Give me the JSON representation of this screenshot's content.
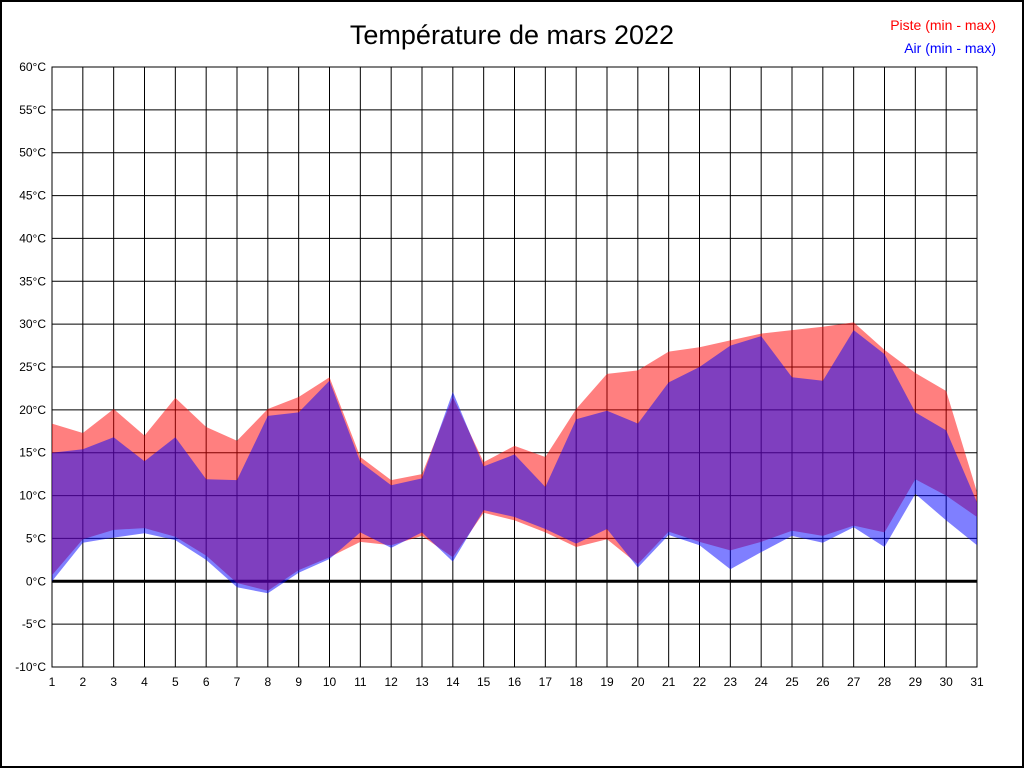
{
  "title": "Température de mars 2022",
  "legend": {
    "piste_label": "Piste (min - max)",
    "air_label": "Air (min - max)"
  },
  "colors": {
    "piste": "#ff0000",
    "air": "#0000ff",
    "piste_fill": "rgba(255,0,0,0.5)",
    "air_fill": "rgba(0,0,255,0.5)",
    "overlap_seen": "#7f40bf",
    "grid": "#000000",
    "background": "#ffffff"
  },
  "chart_data": {
    "type": "area",
    "subtype": "min-max-bands",
    "title": "Température de mars 2022",
    "xlabel": "",
    "ylabel": "",
    "x": [
      1,
      2,
      3,
      4,
      5,
      6,
      7,
      8,
      9,
      10,
      11,
      12,
      13,
      14,
      15,
      16,
      17,
      18,
      19,
      20,
      21,
      22,
      23,
      24,
      25,
      26,
      27,
      28,
      29,
      30,
      31
    ],
    "xlim": [
      1,
      31
    ],
    "ylim": [
      -10,
      60
    ],
    "ytick_step": 5,
    "ytick_suffix": "°C",
    "grid": true,
    "zero_line_bold": true,
    "legend_position": "top-right",
    "series": [
      {
        "id": "piste-band",
        "name": "Piste (min - max)",
        "color": "#ff0000",
        "fill": "rgba(255,0,0,0.5)",
        "min": [
          0.7,
          4.9,
          6.0,
          6.2,
          5.2,
          3.0,
          -0.2,
          -1.1,
          1.3,
          2.8,
          4.6,
          4.2,
          5.3,
          2.8,
          8.0,
          7.1,
          5.7,
          4.0,
          4.9,
          2.0,
          5.8,
          4.6,
          3.6,
          4.6,
          5.9,
          5.3,
          6.5,
          5.7,
          11.9,
          10.0,
          7.5
        ],
        "max": [
          18.4,
          17.3,
          20.1,
          17.0,
          21.4,
          18.0,
          16.4,
          20.1,
          21.5,
          23.8,
          14.5,
          11.8,
          12.5,
          21.5,
          13.9,
          15.8,
          14.5,
          20.1,
          24.2,
          24.6,
          26.8,
          27.3,
          28.1,
          28.9,
          29.3,
          29.7,
          30.2,
          27.0,
          24.3,
          22.2,
          10.4
        ]
      },
      {
        "id": "air-band",
        "name": "Air (min - max)",
        "color": "#0000ff",
        "fill": "rgba(0,0,255,0.5)",
        "min": [
          0.0,
          4.5,
          5.1,
          5.6,
          4.8,
          2.5,
          -0.7,
          -1.4,
          1.0,
          2.6,
          5.7,
          3.9,
          5.7,
          2.3,
          8.3,
          7.5,
          6.1,
          4.4,
          6.1,
          1.6,
          5.4,
          4.2,
          1.4,
          3.4,
          5.3,
          4.5,
          6.3,
          4.0,
          10.2,
          7.1,
          4.2
        ],
        "max": [
          15.0,
          15.4,
          16.8,
          14.0,
          16.8,
          11.9,
          11.8,
          19.3,
          19.7,
          23.4,
          13.9,
          11.2,
          12.0,
          22.1,
          13.4,
          14.8,
          11.0,
          18.9,
          19.9,
          18.4,
          23.2,
          25.0,
          27.5,
          28.6,
          23.8,
          23.4,
          29.3,
          26.5,
          19.7,
          17.6,
          9.2
        ]
      }
    ]
  }
}
